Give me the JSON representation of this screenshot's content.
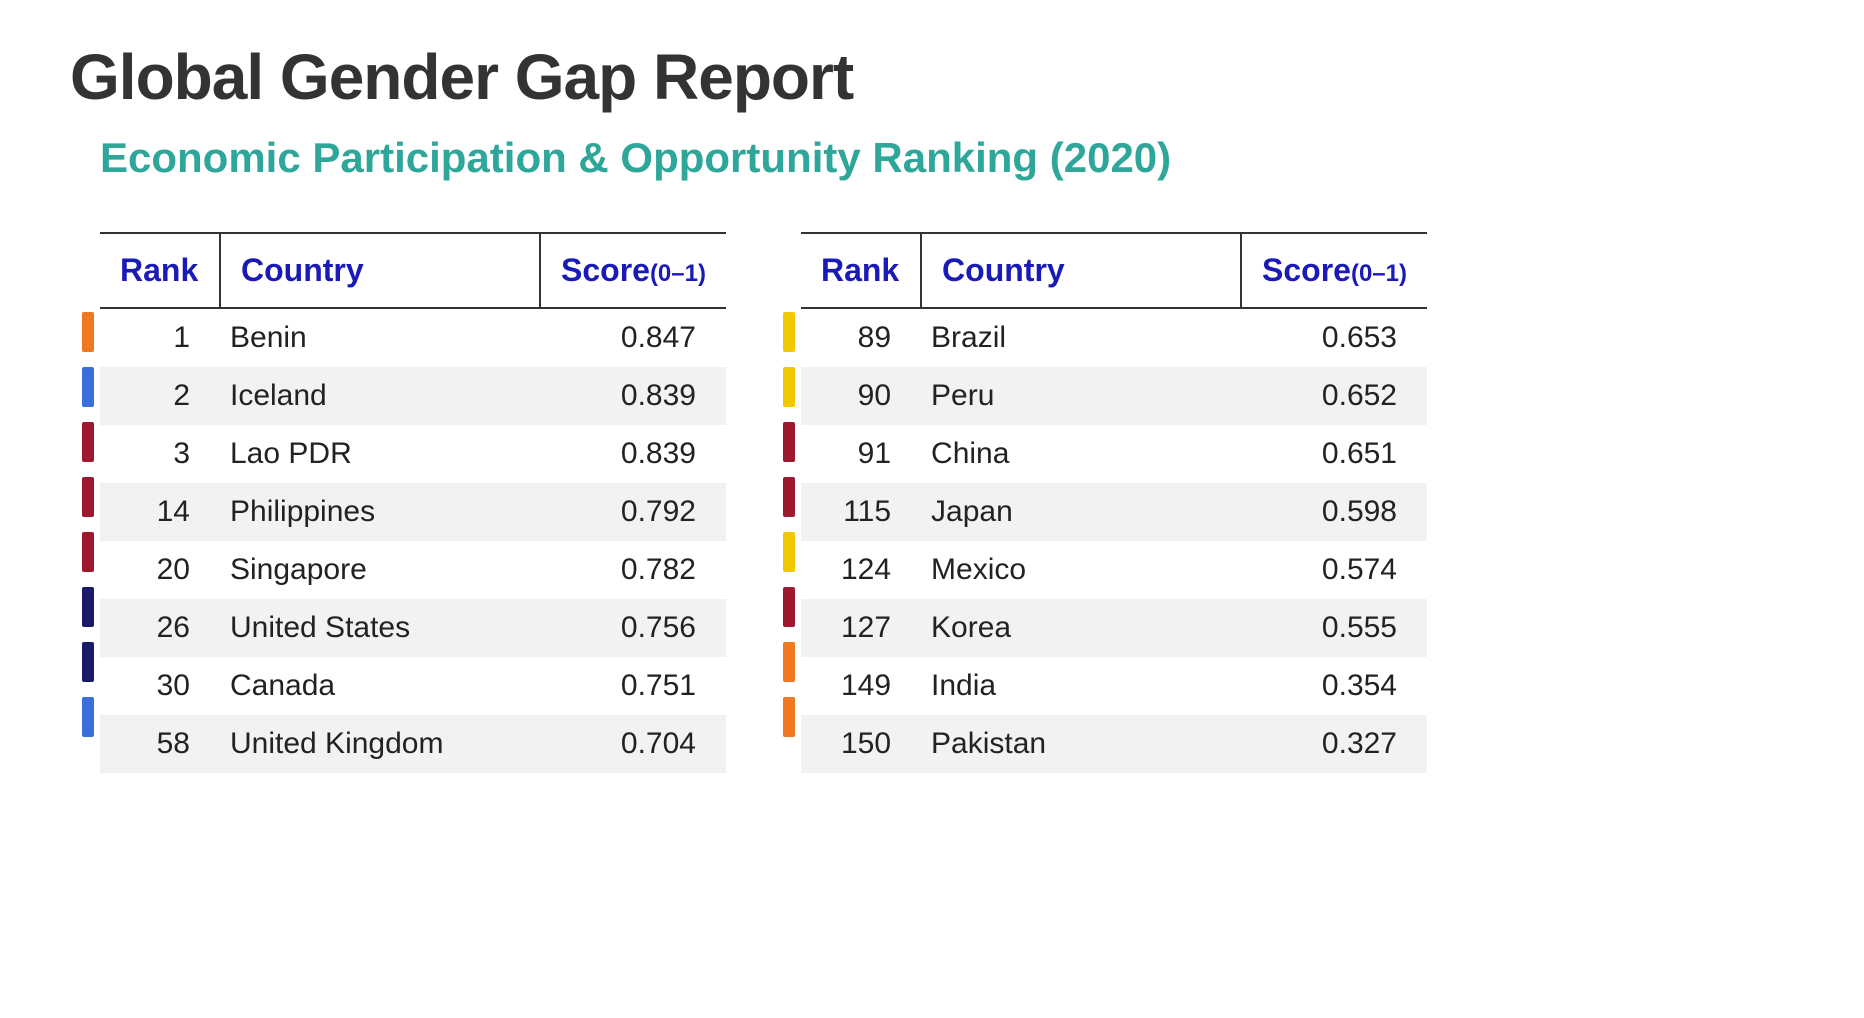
{
  "title": "Global Gender Gap Report",
  "subtitle": "Economic Participation & Opportunity Ranking (2020)",
  "colors": {
    "title": "#333333",
    "subtitle": "#2ea79a",
    "header_text": "#1a1ab8",
    "body_text": "#222222",
    "background": "#ffffff",
    "stripe": "#f2f2f2",
    "border": "#333333"
  },
  "typography": {
    "title_fontsize": 64,
    "subtitle_fontsize": 42,
    "header_fontsize": 32,
    "body_fontsize": 30,
    "score_range_fontsize": 24
  },
  "table_headers": {
    "rank": "Rank",
    "country": "Country",
    "score": "Score",
    "score_range": "(0–1)"
  },
  "layout": {
    "header_row_height": 72,
    "body_row_height": 55,
    "marker_width": 12,
    "marker_height": 40,
    "rank_col_width": 120,
    "country_col_width": 320,
    "score_col_width": 180
  },
  "marker_palette": {
    "orange": "#f07820",
    "blue": "#3a6fd8",
    "darkred": "#a01830",
    "navy": "#1a1a6a",
    "yellow": "#f2c800"
  },
  "tables": [
    {
      "rows": [
        {
          "rank": 1,
          "country": "Benin",
          "score": "0.847",
          "marker_color": "#f07820"
        },
        {
          "rank": 2,
          "country": "Iceland",
          "score": "0.839",
          "marker_color": "#3a6fd8"
        },
        {
          "rank": 3,
          "country": "Lao PDR",
          "score": "0.839",
          "marker_color": "#a01830"
        },
        {
          "rank": 14,
          "country": "Philippines",
          "score": "0.792",
          "marker_color": "#a01830"
        },
        {
          "rank": 20,
          "country": "Singapore",
          "score": "0.782",
          "marker_color": "#a01830"
        },
        {
          "rank": 26,
          "country": "United States",
          "score": "0.756",
          "marker_color": "#1a1a6a"
        },
        {
          "rank": 30,
          "country": "Canada",
          "score": "0.751",
          "marker_color": "#1a1a6a"
        },
        {
          "rank": 58,
          "country": "United Kingdom",
          "score": "0.704",
          "marker_color": "#3a6fd8"
        }
      ]
    },
    {
      "rows": [
        {
          "rank": 89,
          "country": "Brazil",
          "score": "0.653",
          "marker_color": "#f2c800"
        },
        {
          "rank": 90,
          "country": "Peru",
          "score": "0.652",
          "marker_color": "#f2c800"
        },
        {
          "rank": 91,
          "country": "China",
          "score": "0.651",
          "marker_color": "#a01830"
        },
        {
          "rank": 115,
          "country": "Japan",
          "score": "0.598",
          "marker_color": "#a01830"
        },
        {
          "rank": 124,
          "country": "Mexico",
          "score": "0.574",
          "marker_color": "#f2c800"
        },
        {
          "rank": 127,
          "country": "Korea",
          "score": "0.555",
          "marker_color": "#a01830"
        },
        {
          "rank": 149,
          "country": "India",
          "score": "0.354",
          "marker_color": "#f07820"
        },
        {
          "rank": 150,
          "country": "Pakistan",
          "score": "0.327",
          "marker_color": "#f07820"
        }
      ]
    }
  ]
}
